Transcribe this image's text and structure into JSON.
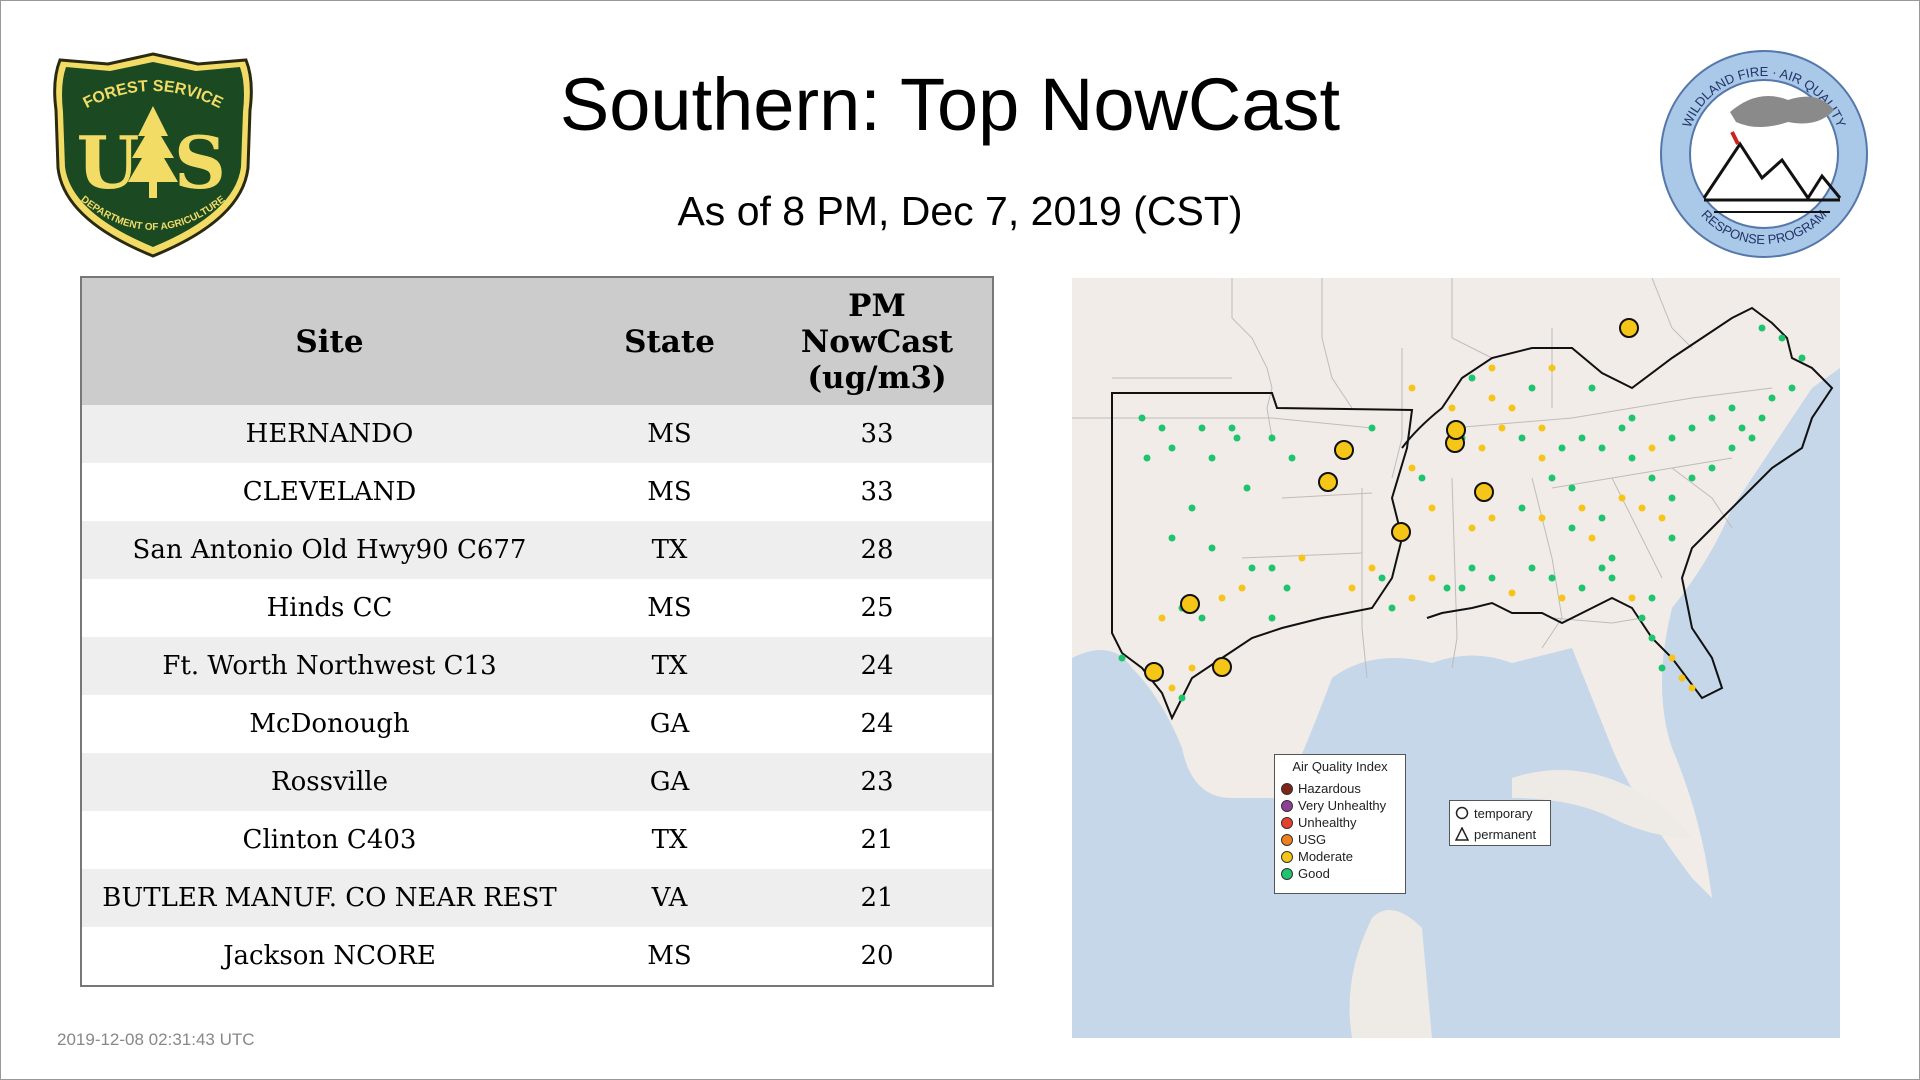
{
  "header": {
    "title": "Southern: Top NowCast",
    "subtitle": "As of  8 PM, Dec  7, 2019 (CST)"
  },
  "logos": {
    "forest_service": {
      "top_text": "FOREST SERVICE",
      "letters": "U S",
      "bottom_text": "DEPARTMENT OF AGRICULTURE"
    },
    "wildland": {
      "top_text": "WILDLAND FIRE · AIR QUALITY",
      "bottom_text": "RESPONSE PROGRAM"
    }
  },
  "table": {
    "headers": {
      "site": "Site",
      "state": "State",
      "pm_line1": "PM",
      "pm_line2": "NowCast",
      "pm_line3": "(ug/m3)"
    },
    "rows": [
      {
        "site": "HERNANDO",
        "state": "MS",
        "value": "33"
      },
      {
        "site": "CLEVELAND",
        "state": "MS",
        "value": "33"
      },
      {
        "site": "San Antonio Old Hwy90 C677",
        "state": "TX",
        "value": "28"
      },
      {
        "site": "Hinds CC",
        "state": "MS",
        "value": "25"
      },
      {
        "site": "Ft. Worth Northwest C13",
        "state": "TX",
        "value": "24"
      },
      {
        "site": "McDonough",
        "state": "GA",
        "value": "24"
      },
      {
        "site": "Rossville",
        "state": "GA",
        "value": "23"
      },
      {
        "site": "Clinton C403",
        "state": "TX",
        "value": "21"
      },
      {
        "site": "BUTLER MANUF. CO NEAR REST",
        "state": "VA",
        "value": "21"
      },
      {
        "site": "Jackson NCORE",
        "state": "MS",
        "value": "20"
      }
    ]
  },
  "map": {
    "legend": {
      "title": "Air Quality Index",
      "items": [
        {
          "label": "Hazardous",
          "color": "#7e2418"
        },
        {
          "label": "Very Unhealthy",
          "color": "#8f3f97"
        },
        {
          "label": "Unhealthy",
          "color": "#e8402e"
        },
        {
          "label": "USG",
          "color": "#f07f1e"
        },
        {
          "label": "Moderate",
          "color": "#f5c518"
        },
        {
          "label": "Good",
          "color": "#1fc46e"
        }
      ]
    },
    "shape_legend": {
      "temporary": "temporary",
      "permanent": "permanent"
    }
  },
  "timestamp": "2019-12-08 02:31:43 UTC"
}
